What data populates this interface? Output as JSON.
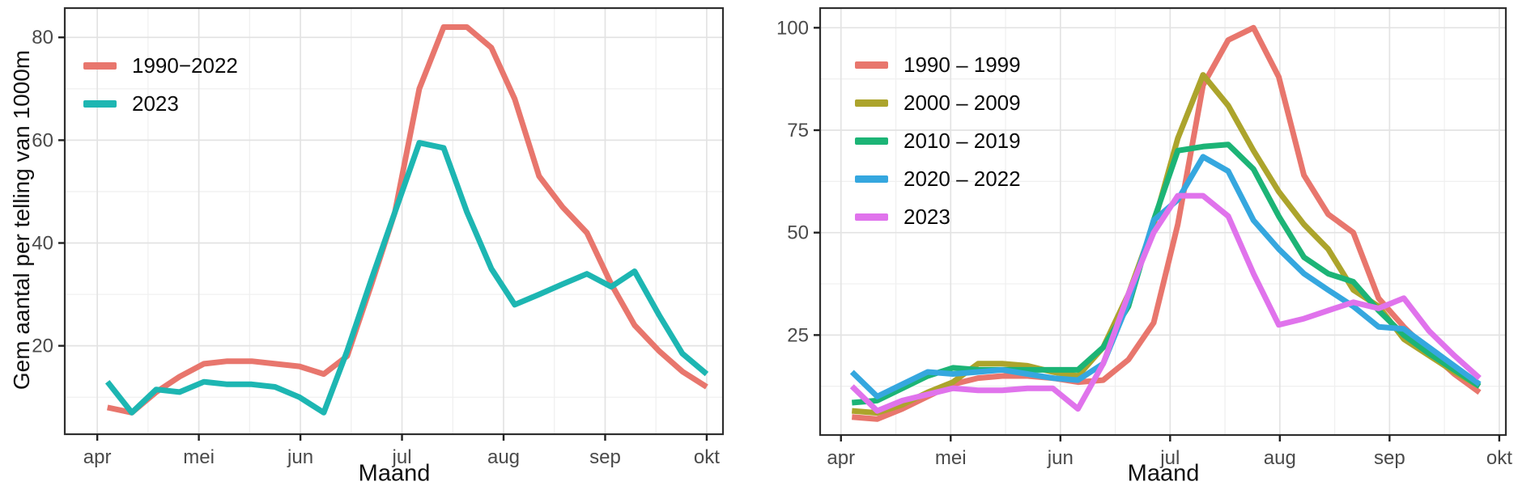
{
  "page": {
    "background": "#ffffff"
  },
  "axis_text_color": "#4a4a4a",
  "chart_data": [
    {
      "id": "left",
      "type": "line",
      "title": "",
      "xlabel": "Maand",
      "ylabel": "Gem aantal per telling van 1000m",
      "x_unit": "months, 0=apr 1=mei 2=jun 3=jul 4=aug 5=sep 6=okt",
      "x_tick_labels": [
        "apr",
        "mei",
        "jun",
        "jul",
        "aug",
        "sep",
        "okt"
      ],
      "x_tick_positions": [
        0,
        1,
        2,
        3,
        4,
        5,
        6
      ],
      "y_ticks": [
        20,
        40,
        60,
        80
      ],
      "xlim": [
        -0.32,
        6.16
      ],
      "ylim": [
        2.8,
        85.7
      ],
      "grid": true,
      "legend_position": "top-left-inside",
      "x": [
        0.1,
        0.34,
        0.58,
        0.81,
        1.05,
        1.28,
        1.52,
        1.75,
        1.99,
        2.23,
        2.46,
        2.7,
        2.93,
        3.17,
        3.41,
        3.64,
        3.88,
        4.11,
        4.35,
        4.58,
        4.82,
        5.06,
        5.29,
        5.53,
        5.76,
        6.0
      ],
      "series": [
        {
          "name": "1990−2022",
          "color": "#E8766D",
          "values": [
            8,
            7,
            11,
            14,
            16.5,
            17,
            17,
            16.5,
            16,
            14.5,
            18,
            32,
            46,
            70,
            82,
            82,
            78,
            68,
            53,
            47,
            42,
            32,
            24,
            19,
            15,
            12
          ]
        },
        {
          "name": "2023",
          "color": "#1DB6B2",
          "values": [
            13,
            7,
            11.5,
            11,
            13,
            12.5,
            12.5,
            12,
            10,
            7,
            19,
            33,
            46,
            59.5,
            58.5,
            46,
            35,
            28,
            30,
            32,
            34,
            31.5,
            34.5,
            26,
            18.5,
            14.5
          ]
        }
      ]
    },
    {
      "id": "right",
      "type": "line",
      "title": "",
      "xlabel": "Maand",
      "ylabel": "",
      "x_unit": "months, 0=apr 1=mei 2=jun 3=jul 4=aug 5=sep 6=okt",
      "x_tick_labels": [
        "apr",
        "mei",
        "jun",
        "jul",
        "aug",
        "sep",
        "okt"
      ],
      "x_tick_positions": [
        0,
        1,
        2,
        3,
        4,
        5,
        6
      ],
      "y_ticks": [
        25,
        50,
        75,
        100
      ],
      "xlim": [
        -0.19,
        6.06
      ],
      "ylim": [
        0.6,
        104.8
      ],
      "grid": true,
      "legend_position": "top-left-inside",
      "x": [
        0.1,
        0.33,
        0.56,
        0.79,
        1.02,
        1.25,
        1.47,
        1.7,
        1.93,
        2.16,
        2.39,
        2.62,
        2.85,
        3.07,
        3.3,
        3.53,
        3.76,
        3.99,
        4.22,
        4.44,
        4.67,
        4.9,
        5.13,
        5.36,
        5.59,
        5.82
      ],
      "series": [
        {
          "name": "1990 – 1999",
          "color": "#E8766D",
          "values": [
            5,
            4.5,
            7,
            10,
            13,
            14.5,
            15,
            15,
            14.5,
            13.5,
            14,
            19,
            28,
            52,
            86,
            97,
            100,
            88,
            64,
            54.5,
            50,
            34,
            27,
            21,
            15.5,
            11
          ]
        },
        {
          "name": "2000 – 2009",
          "color": "#ACA42C",
          "values": [
            6.5,
            6,
            8,
            11,
            13.5,
            18,
            18,
            17.5,
            16,
            15,
            22,
            35,
            52,
            73,
            88.5,
            81,
            70,
            60,
            52,
            46,
            36,
            32,
            24,
            20,
            16,
            12.5
          ]
        },
        {
          "name": "2010 – 2019",
          "color": "#1CB476",
          "values": [
            8.5,
            9,
            12,
            15,
            17,
            16.5,
            16.5,
            16.5,
            16.5,
            16.5,
            22,
            32,
            53,
            70,
            71,
            71.5,
            65.5,
            54,
            44,
            40,
            38,
            31,
            25,
            20.5,
            16.5,
            12.5
          ]
        },
        {
          "name": "2020 – 2022",
          "color": "#35A7DF",
          "values": [
            16,
            10,
            13,
            16,
            15.5,
            16,
            16.5,
            15.5,
            14.5,
            14,
            18,
            33,
            53,
            58,
            68.5,
            65,
            53,
            46,
            40,
            36,
            32,
            27,
            26.5,
            22,
            17.5,
            13
          ]
        },
        {
          "name": "2023",
          "color": "#E073EC",
          "values": [
            12.5,
            6.5,
            9,
            10.5,
            12,
            11.5,
            11.5,
            12,
            12,
            7,
            18,
            35,
            50,
            59,
            59,
            54,
            40,
            27.5,
            29,
            31,
            33,
            31.5,
            34,
            26,
            20,
            14.5
          ]
        }
      ]
    }
  ],
  "style": {
    "grid_major_color": "#E3E3E3",
    "grid_minor_color": "#F0F0F0",
    "panel_border_color": "#2E2E2E",
    "tick_mark_color": "#222222",
    "line_width": 7
  }
}
